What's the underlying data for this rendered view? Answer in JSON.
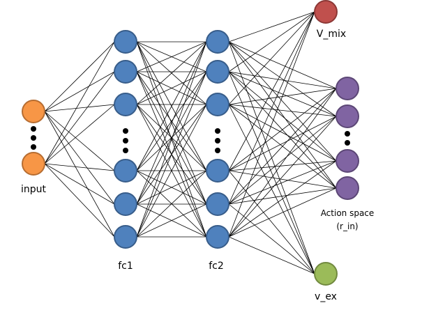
{
  "layers": [
    {
      "id": "input",
      "label": "input",
      "nodes": 2,
      "color": "#F79646",
      "stroke": "#B66D31"
    },
    {
      "id": "fc1",
      "label": "fc1",
      "nodes": 6,
      "color": "#4F81BD",
      "stroke": "#385D8A"
    },
    {
      "id": "fc2",
      "label": "fc2",
      "nodes": 6,
      "color": "#4F81BD",
      "stroke": "#385D8A"
    }
  ],
  "outputs": {
    "v_mix": {
      "label": "V_mix",
      "color": "#C0504D",
      "stroke": "#8C3836"
    },
    "action": {
      "label_line1": "Action space",
      "label_line2": "(r_in)",
      "nodes": 4,
      "color": "#8064A2",
      "stroke": "#5C4776"
    },
    "v_ex": {
      "label": "v_ex",
      "color": "#9BBB59",
      "stroke": "#71893F"
    }
  },
  "connections": "fully-connected",
  "edge_color": "#000000"
}
